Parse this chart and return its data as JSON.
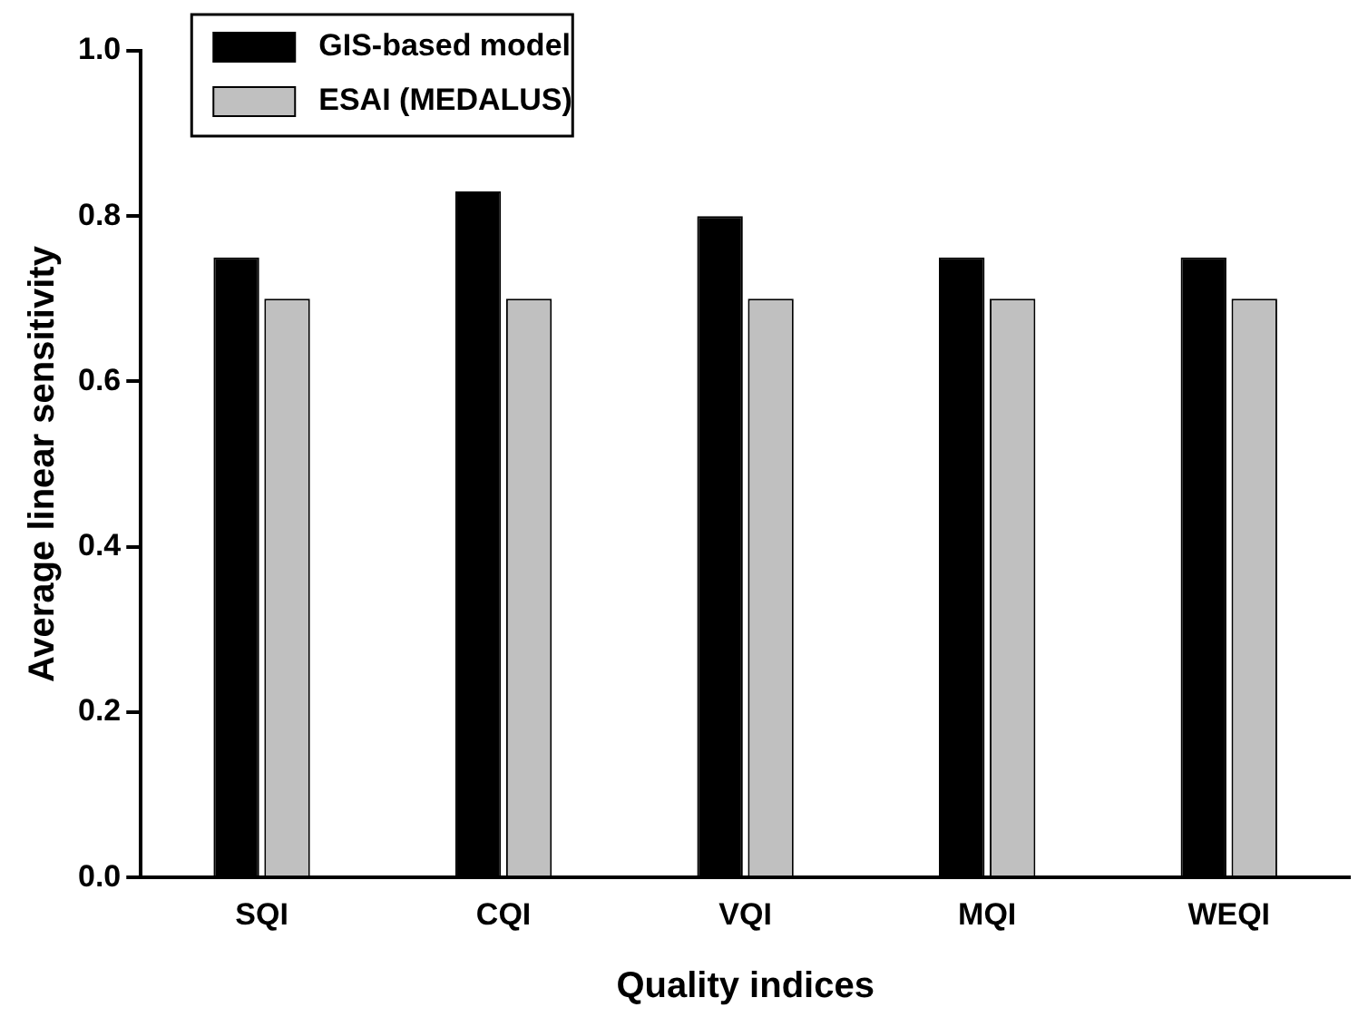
{
  "chart_data": {
    "type": "bar",
    "xlabel": "Quality indices",
    "ylabel": "Average linear sensitivity",
    "categories": [
      "SQI",
      "CQI",
      "VQI",
      "MQI",
      "WEQI"
    ],
    "series": [
      {
        "name": "GIS-based model",
        "color": "#000000",
        "values": [
          0.75,
          0.83,
          0.8,
          0.75,
          0.75
        ]
      },
      {
        "name": "ESAI (MEDALUS)",
        "color": "#c0c0c0",
        "values": [
          0.7,
          0.7,
          0.7,
          0.7,
          0.7
        ]
      }
    ],
    "ylim": [
      0,
      1
    ],
    "yticks": [
      {
        "value": 0,
        "label": "0.0"
      },
      {
        "value": 0.2,
        "label": "0.2"
      },
      {
        "value": 0.4,
        "label": "0.4"
      },
      {
        "value": 0.6,
        "label": "0.6"
      },
      {
        "value": 0.8,
        "label": "0.8"
      },
      {
        "value": 1,
        "label": "1.0"
      }
    ],
    "grid": false,
    "legend": "top left"
  }
}
